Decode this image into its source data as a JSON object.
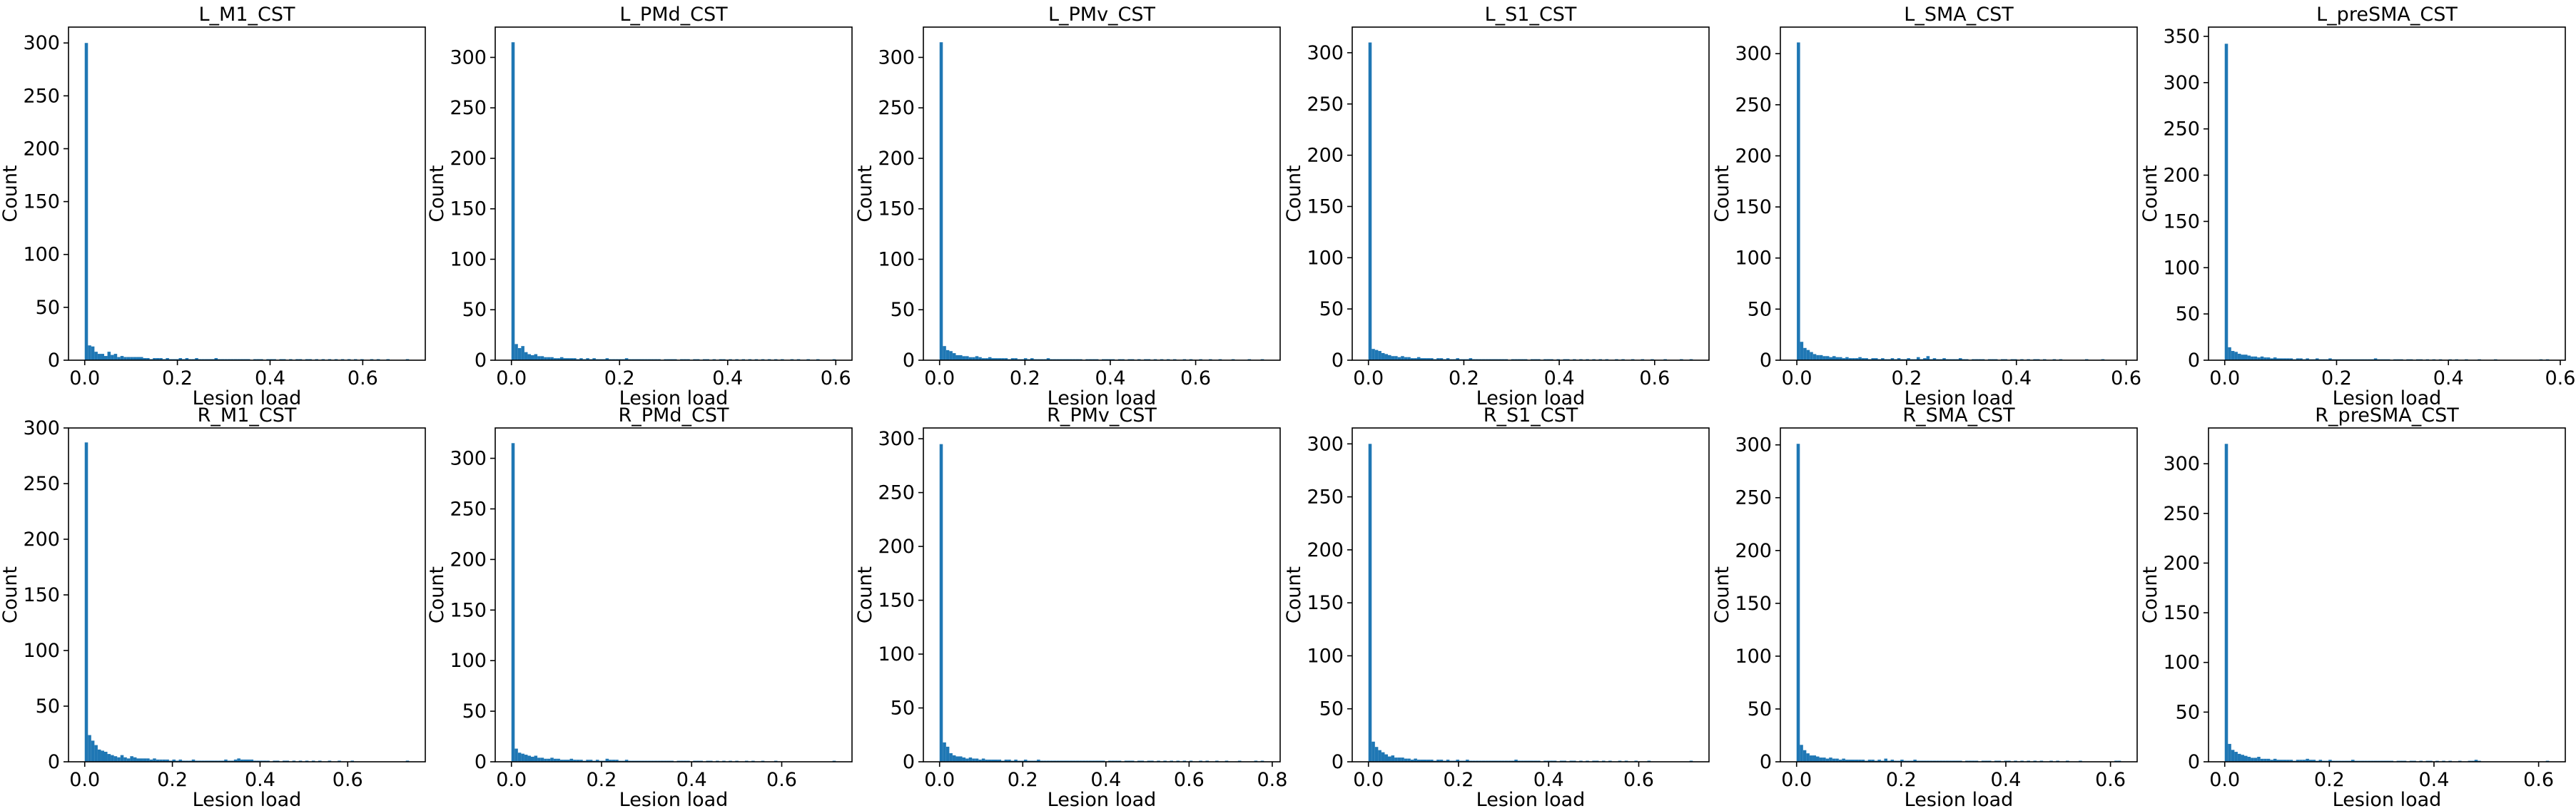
{
  "chart_data": [
    {
      "type": "bar",
      "title": "L_M1_CST",
      "xlabel": "Lesion load",
      "ylabel": "Count",
      "color": "#1f77b4",
      "xlim": [
        -0.035,
        0.735
      ],
      "ylim": [
        0,
        315
      ],
      "xticks": [
        "0.0",
        "0.2",
        "0.4",
        "0.6"
      ],
      "yticks": [
        "0",
        "50",
        "100",
        "150",
        "200",
        "250",
        "300"
      ],
      "bin_width": 0.007,
      "bin_start": 0.0,
      "counts": [
        300,
        14,
        13,
        8,
        6,
        6,
        4,
        8,
        5,
        6,
        3,
        4,
        3,
        3,
        3,
        3,
        3,
        3,
        2,
        2,
        1,
        2,
        2,
        2,
        1,
        2,
        1,
        1,
        1,
        2,
        1,
        2,
        1,
        1,
        2,
        1,
        1,
        1,
        1,
        1,
        2,
        1,
        1,
        1,
        1,
        1,
        1,
        1,
        1,
        1,
        1,
        0,
        1,
        1,
        1,
        0,
        1,
        1,
        1,
        0,
        1,
        1,
        0,
        1,
        0,
        1,
        1,
        0,
        1,
        1,
        0,
        1,
        0,
        1,
        0,
        1,
        0,
        1,
        0,
        1,
        0,
        1,
        0,
        1,
        0,
        1,
        0,
        0,
        1,
        0,
        1,
        0,
        0,
        1,
        0,
        0,
        0,
        0,
        0,
        1
      ]
    },
    {
      "type": "bar",
      "title": "L_PMd_CST",
      "xlabel": "Lesion load",
      "ylabel": "Count",
      "color": "#1f77b4",
      "xlim": [
        -0.03,
        0.63
      ],
      "ylim": [
        0,
        330
      ],
      "xticks": [
        "0.0",
        "0.2",
        "0.4",
        "0.6"
      ],
      "yticks": [
        "0",
        "50",
        "100",
        "150",
        "200",
        "250",
        "300"
      ],
      "bin_width": 0.006,
      "bin_start": 0.0,
      "counts": [
        315,
        16,
        12,
        14,
        8,
        6,
        5,
        6,
        4,
        4,
        3,
        3,
        3,
        2,
        2,
        3,
        2,
        2,
        2,
        2,
        1,
        2,
        1,
        2,
        1,
        2,
        1,
        1,
        1,
        2,
        1,
        1,
        1,
        1,
        1,
        2,
        1,
        1,
        1,
        1,
        1,
        1,
        1,
        1,
        1,
        1,
        0,
        1,
        1,
        1,
        1,
        0,
        1,
        1,
        1,
        0,
        1,
        1,
        0,
        1,
        1,
        0,
        1,
        0,
        1,
        1,
        0,
        1,
        0,
        1,
        0,
        1,
        0,
        1,
        0,
        1,
        0,
        1,
        0,
        1,
        0,
        1,
        0,
        1,
        0,
        0,
        1,
        0,
        1,
        0,
        0,
        1,
        0,
        0,
        1,
        0,
        0,
        0,
        0,
        1
      ]
    },
    {
      "type": "bar",
      "title": "L_PMv_CST",
      "xlabel": "Lesion load",
      "ylabel": "Count",
      "color": "#1f77b4",
      "xlim": [
        -0.038,
        0.798
      ],
      "ylim": [
        0,
        330
      ],
      "xticks": [
        "0.0",
        "0.2",
        "0.4",
        "0.6"
      ],
      "yticks": [
        "0",
        "50",
        "100",
        "150",
        "200",
        "250",
        "300"
      ],
      "bin_width": 0.0076,
      "bin_start": 0.0,
      "counts": [
        315,
        14,
        10,
        9,
        7,
        5,
        5,
        4,
        4,
        3,
        3,
        4,
        3,
        2,
        2,
        3,
        2,
        2,
        2,
        2,
        2,
        1,
        2,
        2,
        1,
        1,
        2,
        1,
        2,
        1,
        1,
        1,
        1,
        2,
        1,
        1,
        1,
        1,
        1,
        1,
        1,
        1,
        1,
        1,
        0,
        1,
        1,
        1,
        1,
        0,
        1,
        1,
        1,
        1,
        0,
        1,
        1,
        0,
        1,
        1,
        0,
        1,
        0,
        1,
        1,
        0,
        1,
        0,
        1,
        0,
        1,
        0,
        1,
        0,
        0,
        1,
        0,
        1,
        0,
        0,
        1,
        0,
        0,
        1,
        0,
        0,
        1,
        0,
        0,
        0,
        1,
        0,
        0,
        0,
        0,
        1,
        0,
        0,
        0,
        1
      ]
    },
    {
      "type": "bar",
      "title": "L_S1_CST",
      "xlabel": "Lesion load",
      "ylabel": "Count",
      "color": "#1f77b4",
      "xlim": [
        -0.034,
        0.714
      ],
      "ylim": [
        0,
        325
      ],
      "xticks": [
        "0.0",
        "0.2",
        "0.4",
        "0.6"
      ],
      "yticks": [
        "0",
        "50",
        "100",
        "150",
        "200",
        "250",
        "300"
      ],
      "bin_width": 0.0068,
      "bin_start": 0.0,
      "counts": [
        310,
        11,
        10,
        9,
        7,
        6,
        5,
        4,
        4,
        3,
        4,
        3,
        3,
        2,
        2,
        3,
        2,
        2,
        2,
        2,
        1,
        2,
        2,
        1,
        2,
        1,
        1,
        2,
        1,
        1,
        1,
        2,
        1,
        1,
        1,
        1,
        1,
        1,
        1,
        1,
        1,
        1,
        1,
        0,
        1,
        1,
        1,
        1,
        1,
        0,
        1,
        1,
        1,
        0,
        1,
        1,
        1,
        0,
        1,
        0,
        1,
        1,
        0,
        1,
        0,
        1,
        0,
        1,
        0,
        1,
        0,
        1,
        0,
        1,
        0,
        0,
        1,
        0,
        1,
        0,
        0,
        1,
        0,
        0,
        1,
        0,
        0,
        1,
        0,
        0,
        0,
        1,
        0,
        0,
        0,
        0,
        1,
        0,
        0,
        1
      ]
    },
    {
      "type": "bar",
      "title": "L_SMA_CST",
      "xlabel": "Lesion load",
      "ylabel": "Count",
      "color": "#1f77b4",
      "xlim": [
        -0.03,
        0.62
      ],
      "ylim": [
        0,
        326
      ],
      "xticks": [
        "0.0",
        "0.2",
        "0.4",
        "0.6"
      ],
      "yticks": [
        "0",
        "50",
        "100",
        "150",
        "200",
        "250",
        "300"
      ],
      "bin_width": 0.0059,
      "bin_start": 0.0,
      "counts": [
        311,
        18,
        12,
        10,
        8,
        6,
        5,
        5,
        4,
        4,
        3,
        4,
        3,
        3,
        2,
        3,
        2,
        2,
        2,
        3,
        2,
        2,
        1,
        2,
        2,
        1,
        2,
        1,
        1,
        2,
        1,
        2,
        1,
        1,
        2,
        1,
        1,
        3,
        1,
        2,
        4,
        1,
        2,
        1,
        1,
        2,
        1,
        1,
        1,
        1,
        2,
        1,
        1,
        0,
        1,
        1,
        1,
        1,
        0,
        1,
        1,
        1,
        0,
        1,
        1,
        0,
        1,
        1,
        0,
        1,
        0,
        1,
        0,
        1,
        1,
        0,
        1,
        0,
        0,
        1,
        0,
        1,
        0,
        0,
        0,
        0,
        0,
        0,
        0,
        1,
        0,
        0,
        0,
        0,
        1,
        0,
        0,
        0,
        0,
        0
      ]
    },
    {
      "type": "bar",
      "title": "L_preSMA_CST",
      "xlabel": "Lesion load",
      "ylabel": "Count",
      "color": "#1f77b4",
      "xlim": [
        -0.029,
        0.609
      ],
      "ylim": [
        0,
        360
      ],
      "xticks": [
        "0.0",
        "0.2",
        "0.4",
        "0.6"
      ],
      "yticks": [
        "0",
        "50",
        "100",
        "150",
        "200",
        "250",
        "300",
        "350"
      ],
      "bin_width": 0.0058,
      "bin_start": 0.0,
      "counts": [
        342,
        14,
        10,
        9,
        7,
        6,
        6,
        5,
        4,
        4,
        3,
        4,
        3,
        3,
        2,
        3,
        2,
        2,
        2,
        2,
        2,
        1,
        2,
        2,
        1,
        2,
        1,
        1,
        2,
        1,
        1,
        1,
        2,
        1,
        1,
        1,
        1,
        1,
        1,
        1,
        1,
        1,
        1,
        1,
        1,
        1,
        2,
        1,
        1,
        1,
        1,
        0,
        1,
        1,
        1,
        0,
        1,
        1,
        0,
        1,
        1,
        0,
        1,
        0,
        1,
        0,
        1,
        0,
        0,
        1,
        0,
        1,
        0,
        0,
        1,
        0,
        0,
        0,
        1,
        0,
        0,
        0,
        0,
        1,
        0,
        0,
        0,
        0,
        0,
        0,
        0,
        0,
        0,
        0,
        0,
        0,
        0,
        1,
        0,
        1
      ]
    },
    {
      "type": "bar",
      "title": "R_M1_CST",
      "xlabel": "Lesion load",
      "ylabel": "Count",
      "color": "#1f77b4",
      "xlim": [
        -0.037,
        0.777
      ],
      "ylim": [
        0,
        300
      ],
      "xticks": [
        "0.0",
        "0.2",
        "0.4",
        "0.6"
      ],
      "yticks": [
        "0",
        "50",
        "100",
        "150",
        "200",
        "250",
        "300"
      ],
      "bin_width": 0.0074,
      "bin_start": 0.0,
      "counts": [
        287,
        24,
        19,
        15,
        11,
        10,
        9,
        7,
        6,
        5,
        4,
        6,
        4,
        3,
        5,
        4,
        3,
        3,
        3,
        3,
        2,
        3,
        2,
        2,
        2,
        2,
        1,
        2,
        1,
        2,
        1,
        1,
        1,
        2,
        1,
        1,
        1,
        1,
        1,
        1,
        1,
        1,
        1,
        2,
        1,
        1,
        2,
        3,
        2,
        2,
        2,
        2,
        1,
        1,
        1,
        1,
        1,
        0,
        1,
        1,
        0,
        1,
        1,
        0,
        1,
        0,
        1,
        0,
        1,
        0,
        1,
        0,
        1,
        0,
        0,
        1,
        0,
        0,
        1,
        0,
        0,
        0,
        1,
        0,
        0,
        0,
        0,
        0,
        0,
        0,
        0,
        0,
        0,
        0,
        0,
        0,
        0,
        0,
        0,
        1
      ]
    },
    {
      "type": "bar",
      "title": "R_PMd_CST",
      "xlabel": "Lesion load",
      "ylabel": "Count",
      "color": "#1f77b4",
      "xlim": [
        -0.036,
        0.756
      ],
      "ylim": [
        0,
        330
      ],
      "xticks": [
        "0.0",
        "0.2",
        "0.4",
        "0.6"
      ],
      "yticks": [
        "0",
        "50",
        "100",
        "150",
        "200",
        "250",
        "300"
      ],
      "bin_width": 0.0072,
      "bin_start": 0.0,
      "counts": [
        315,
        13,
        9,
        8,
        7,
        6,
        5,
        6,
        4,
        4,
        3,
        3,
        4,
        3,
        3,
        2,
        2,
        2,
        3,
        2,
        2,
        2,
        1,
        2,
        2,
        1,
        2,
        1,
        1,
        3,
        2,
        2,
        2,
        1,
        1,
        2,
        1,
        1,
        1,
        1,
        1,
        1,
        1,
        1,
        1,
        1,
        1,
        1,
        1,
        1,
        0,
        1,
        1,
        1,
        1,
        0,
        1,
        1,
        1,
        0,
        1,
        1,
        0,
        1,
        0,
        1,
        0,
        1,
        0,
        1,
        0,
        0,
        1,
        0,
        1,
        0,
        0,
        1,
        0,
        0,
        0,
        1,
        0,
        0,
        0,
        0,
        0,
        0,
        0,
        0,
        0,
        0,
        0,
        0,
        0,
        0,
        0,
        0,
        0,
        1
      ]
    },
    {
      "type": "bar",
      "title": "R_PMv_CST",
      "xlabel": "Lesion load",
      "ylabel": "Count",
      "color": "#1f77b4",
      "xlim": [
        -0.039,
        0.819
      ],
      "ylim": [
        0,
        310
      ],
      "xticks": [
        "0.0",
        "0.2",
        "0.4",
        "0.6",
        "0.8"
      ],
      "yticks": [
        "0",
        "50",
        "100",
        "150",
        "200",
        "250",
        "300"
      ],
      "bin_width": 0.0078,
      "bin_start": 0.0,
      "counts": [
        295,
        18,
        14,
        8,
        6,
        5,
        5,
        4,
        3,
        4,
        3,
        3,
        2,
        3,
        2,
        2,
        2,
        2,
        2,
        1,
        2,
        2,
        1,
        2,
        1,
        1,
        2,
        1,
        1,
        1,
        2,
        1,
        1,
        1,
        1,
        1,
        1,
        1,
        1,
        1,
        1,
        1,
        1,
        1,
        1,
        1,
        1,
        1,
        1,
        1,
        1,
        0,
        1,
        1,
        1,
        1,
        0,
        1,
        1,
        1,
        0,
        1,
        1,
        0,
        1,
        1,
        0,
        1,
        0,
        1,
        0,
        1,
        0,
        1,
        0,
        1,
        0,
        1,
        0,
        0,
        1,
        0,
        1,
        0,
        0,
        1,
        0,
        0,
        1,
        0,
        0,
        0,
        1,
        0,
        0,
        0,
        0,
        1,
        0,
        1
      ]
    },
    {
      "type": "bar",
      "title": "R_S1_CST",
      "xlabel": "Lesion load",
      "ylabel": "Count",
      "color": "#1f77b4",
      "xlim": [
        -0.036,
        0.756
      ],
      "ylim": [
        0,
        315
      ],
      "xticks": [
        "0.0",
        "0.2",
        "0.4",
        "0.6"
      ],
      "yticks": [
        "0",
        "50",
        "100",
        "150",
        "200",
        "250",
        "300"
      ],
      "bin_width": 0.0072,
      "bin_start": 0.0,
      "counts": [
        300,
        19,
        14,
        11,
        9,
        7,
        5,
        6,
        4,
        4,
        4,
        3,
        3,
        2,
        3,
        2,
        2,
        2,
        2,
        2,
        1,
        2,
        2,
        1,
        2,
        1,
        1,
        2,
        1,
        1,
        2,
        1,
        1,
        1,
        1,
        1,
        1,
        1,
        1,
        1,
        1,
        1,
        1,
        1,
        1,
        2,
        1,
        1,
        1,
        1,
        1,
        1,
        1,
        0,
        1,
        1,
        1,
        1,
        0,
        1,
        1,
        0,
        1,
        1,
        0,
        1,
        0,
        1,
        0,
        1,
        1,
        0,
        1,
        0,
        1,
        0,
        0,
        1,
        0,
        1,
        0,
        0,
        1,
        0,
        0,
        0,
        1,
        0,
        0,
        0,
        0,
        0,
        0,
        0,
        0,
        0,
        0,
        0,
        0,
        1
      ]
    },
    {
      "type": "bar",
      "title": "R_SMA_CST",
      "xlabel": "Lesion load",
      "ylabel": "Count",
      "color": "#1f77b4",
      "xlim": [
        -0.031,
        0.651
      ],
      "ylim": [
        0,
        316
      ],
      "xticks": [
        "0.0",
        "0.2",
        "0.4",
        "0.6"
      ],
      "yticks": [
        "0",
        "50",
        "100",
        "150",
        "200",
        "250",
        "300"
      ],
      "bin_width": 0.0062,
      "bin_start": 0.0,
      "counts": [
        301,
        16,
        11,
        8,
        6,
        6,
        5,
        4,
        4,
        3,
        4,
        3,
        3,
        2,
        3,
        2,
        2,
        2,
        2,
        2,
        2,
        1,
        2,
        2,
        1,
        2,
        1,
        3,
        1,
        2,
        1,
        1,
        2,
        1,
        1,
        1,
        2,
        1,
        1,
        1,
        1,
        1,
        1,
        1,
        1,
        1,
        1,
        1,
        1,
        1,
        1,
        0,
        1,
        1,
        1,
        1,
        0,
        1,
        1,
        1,
        0,
        1,
        1,
        0,
        1,
        1,
        0,
        1,
        0,
        1,
        0,
        1,
        0,
        1,
        0,
        1,
        0,
        0,
        1,
        0,
        1,
        0,
        0,
        1,
        0,
        0,
        0,
        1,
        0,
        0,
        0,
        0,
        0,
        0,
        0,
        0,
        0,
        0,
        1,
        1
      ]
    },
    {
      "type": "bar",
      "title": "R_preSMA_CST",
      "xlabel": "Lesion load",
      "ylabel": "Count",
      "color": "#1f77b4",
      "xlim": [
        -0.031,
        0.651
      ],
      "ylim": [
        0,
        336
      ],
      "xticks": [
        "0.0",
        "0.2",
        "0.4",
        "0.6"
      ],
      "yticks": [
        "0",
        "50",
        "100",
        "150",
        "200",
        "250",
        "300"
      ],
      "bin_width": 0.0062,
      "bin_start": 0.0,
      "counts": [
        320,
        18,
        12,
        10,
        8,
        7,
        6,
        5,
        4,
        4,
        5,
        3,
        3,
        3,
        2,
        3,
        2,
        2,
        2,
        2,
        2,
        1,
        2,
        2,
        2,
        3,
        2,
        2,
        1,
        2,
        1,
        1,
        2,
        1,
        1,
        1,
        1,
        1,
        1,
        2,
        1,
        1,
        1,
        1,
        1,
        1,
        1,
        1,
        1,
        1,
        1,
        1,
        0,
        1,
        1,
        1,
        0,
        1,
        1,
        0,
        1,
        0,
        1,
        1,
        0,
        1,
        0,
        1,
        0,
        1,
        0,
        0,
        1,
        0,
        0,
        1,
        1,
        2,
        1,
        0,
        0,
        0,
        0,
        0,
        0,
        0,
        0,
        0,
        0,
        0,
        0,
        0,
        0,
        0,
        0,
        0,
        0,
        0,
        0,
        1
      ]
    }
  ]
}
